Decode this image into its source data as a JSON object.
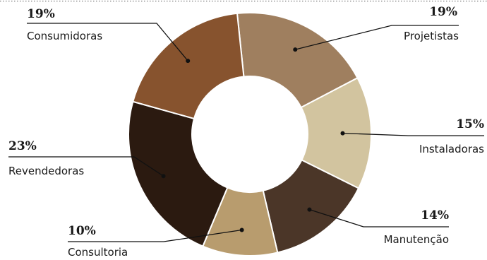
{
  "chart_data": {
    "type": "pie",
    "style": "donut",
    "slices": [
      {
        "label": "Projetistas",
        "percent_label": "19%",
        "value": 19,
        "color": "#9f7f5f"
      },
      {
        "label": "Instaladoras",
        "percent_label": "15%",
        "value": 15,
        "color": "#d2c49f"
      },
      {
        "label": "Manutenção",
        "percent_label": "14%",
        "value": 14,
        "color": "#4b3628"
      },
      {
        "label": "Consultoria",
        "percent_label": "10%",
        "value": 10,
        "color": "#b89c6e"
      },
      {
        "label": "Revendedoras",
        "percent_label": "23%",
        "value": 23,
        "color": "#2b1a10"
      },
      {
        "label": "Consumidoras",
        "percent_label": "19%",
        "value": 19,
        "color": "#87532e"
      }
    ]
  }
}
